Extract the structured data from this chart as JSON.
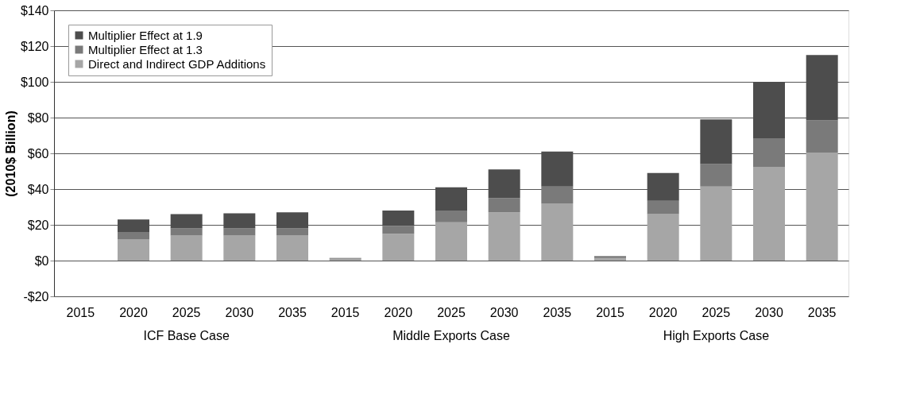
{
  "chart_data": {
    "type": "bar",
    "stacked": true,
    "ylabel": "(2010$ Billion)",
    "categories": [
      "2015",
      "2020",
      "2025",
      "2030",
      "2035",
      "2015",
      "2020",
      "2025",
      "2030",
      "2035",
      "2015",
      "2020",
      "2025",
      "2030",
      "2035"
    ],
    "series": [
      {
        "name": "Direct and Indirect GDP Additions",
        "color": "#a6a6a6",
        "values": [
          0,
          12,
          14,
          14,
          14,
          1,
          15,
          21.5,
          27,
          32,
          1.5,
          26,
          41.5,
          52.5,
          60.5
        ]
      },
      {
        "name": "Multiplier Effect at 1.3",
        "color": "#7a7a7a",
        "values": [
          0,
          4,
          4,
          4,
          4,
          0.3,
          4.5,
          6.5,
          8,
          9.5,
          0.4,
          7.5,
          12.5,
          16,
          18
        ]
      },
      {
        "name": "Multiplier Effect at 1.9",
        "color": "#4d4d4d",
        "values": [
          0,
          7,
          8,
          8.5,
          9,
          0.2,
          8.5,
          13,
          16,
          19.5,
          0.6,
          15.5,
          25,
          31.5,
          36.5
        ]
      }
    ],
    "ylim": [
      -20,
      140
    ],
    "yticks": [
      {
        "value": -20,
        "label": "-$20"
      },
      {
        "value": 0,
        "label": "$0"
      },
      {
        "value": 20,
        "label": "$20"
      },
      {
        "value": 40,
        "label": "$40"
      },
      {
        "value": 60,
        "label": "$60"
      },
      {
        "value": 80,
        "label": "$80"
      },
      {
        "value": 100,
        "label": "$100"
      },
      {
        "value": 120,
        "label": "$120"
      },
      {
        "value": 140,
        "label": "$140"
      }
    ],
    "grid": "y",
    "legend": "top left",
    "annotations": [
      "ICF Base Case",
      "Middle Exports Case",
      "High Exports Case"
    ]
  }
}
